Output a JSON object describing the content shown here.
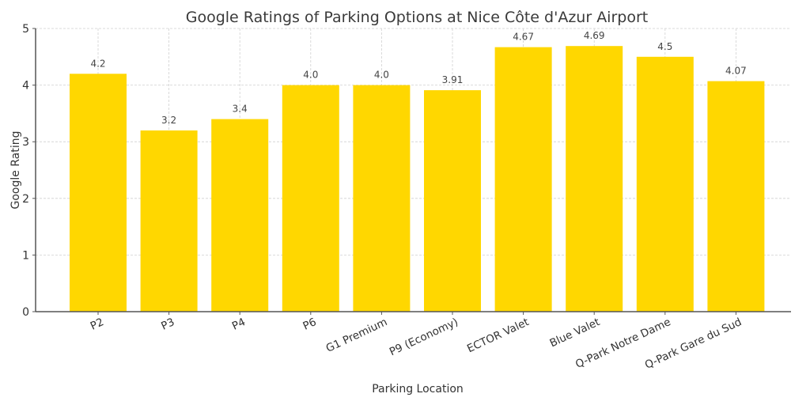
{
  "chart_data": {
    "type": "bar",
    "title": "Google Ratings of Parking Options at Nice Côte d'Azur Airport",
    "xlabel": "Parking Location",
    "ylabel": "Google Rating",
    "ylim": [
      0,
      5
    ],
    "yticks": [
      "0",
      "1",
      "2",
      "3",
      "4",
      "5"
    ],
    "grid": true,
    "bar_color": "#FFD700",
    "categories": [
      "P2",
      "P3",
      "P4",
      "P6",
      "G1 Premium",
      "P9 (Economy)",
      "ECTOR Valet",
      "Blue Valet",
      "Q-Park Notre Dame",
      "Q-Park Gare du Sud"
    ],
    "values": [
      4.2,
      3.2,
      3.4,
      4.0,
      4.0,
      3.91,
      4.67,
      4.69,
      4.5,
      4.07
    ],
    "value_labels": [
      "4.2",
      "3.2",
      "3.4",
      "4.0",
      "4.0",
      "3.91",
      "4.67",
      "4.69",
      "4.5",
      "4.07"
    ]
  }
}
